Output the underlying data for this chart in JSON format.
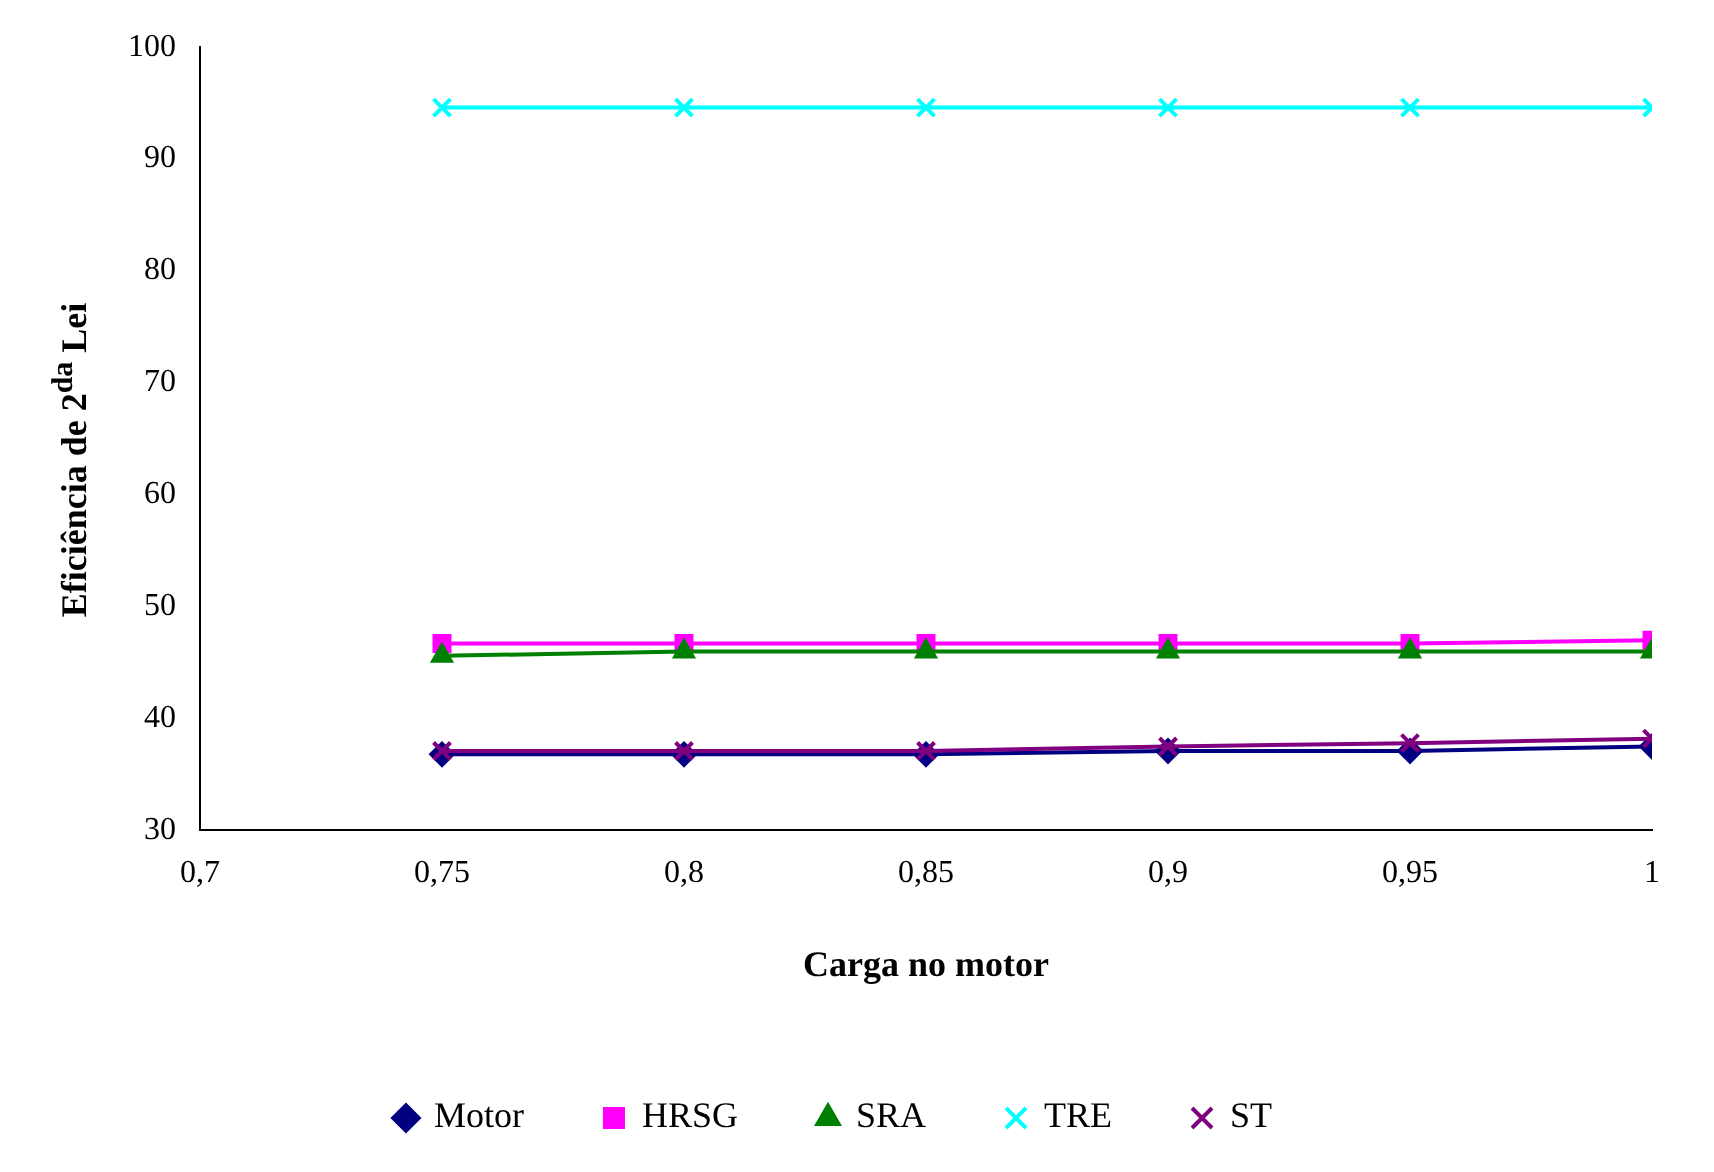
{
  "chart_data": {
    "type": "line",
    "xlabel": "Carga no motor",
    "ylabel": "Eficiência de 2$^{da}$ Lei",
    "x": [
      0.75,
      0.8,
      0.85,
      0.9,
      0.95,
      1
    ],
    "series": [
      {
        "name": "Motor",
        "color": "#000080",
        "marker": "diamond",
        "values": [
          36.8,
          36.8,
          36.8,
          37.1,
          37.1,
          37.5
        ]
      },
      {
        "name": "HRSG",
        "color": "#ff00ff",
        "marker": "square",
        "values": [
          46.7,
          46.7,
          46.7,
          46.7,
          46.7,
          47.0
        ]
      },
      {
        "name": "SRA",
        "color": "#008000",
        "marker": "triangle",
        "values": [
          45.6,
          46.0,
          46.0,
          46.0,
          46.0,
          46.0
        ]
      },
      {
        "name": "TRE",
        "color": "#00ffff",
        "marker": "cross",
        "values": [
          94.6,
          94.6,
          94.6,
          94.6,
          94.6,
          94.6
        ]
      },
      {
        "name": "ST",
        "color": "#800080",
        "marker": "cross",
        "values": [
          37.1,
          37.1,
          37.1,
          37.5,
          37.8,
          38.2
        ]
      }
    ],
    "xlim": [
      0.7,
      1
    ],
    "xticks": [
      {
        "value": 0.7,
        "label": "0,7"
      },
      {
        "value": 0.75,
        "label": "0,75"
      },
      {
        "value": 0.8,
        "label": "0,8"
      },
      {
        "value": 0.85,
        "label": "0,85"
      },
      {
        "value": 0.9,
        "label": "0,9"
      },
      {
        "value": 0.95,
        "label": "0,95"
      },
      {
        "value": 1,
        "label": "1"
      }
    ],
    "ylim": [
      30,
      100
    ],
    "yticks": [
      30,
      40,
      50,
      60,
      70,
      80,
      90,
      100
    ],
    "grid": false,
    "legend": "bottom"
  }
}
